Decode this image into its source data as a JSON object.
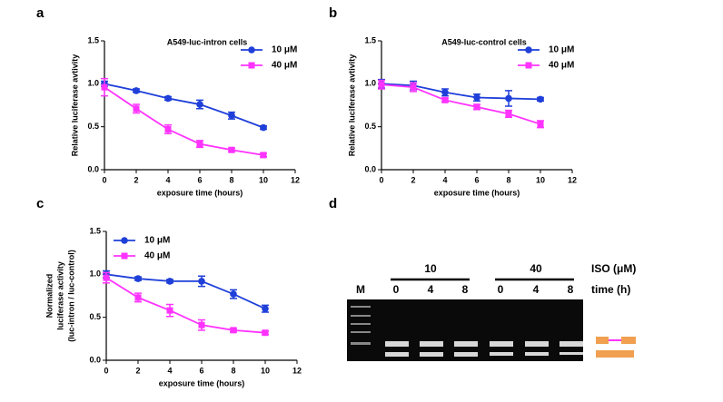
{
  "chart_data": [
    {
      "type": "line",
      "panel_label": "a",
      "title": "A549-luc-intron cells",
      "xlabel": "exposure time (hours)",
      "ylabel": "Relative luciferase avtivity",
      "x": [
        0,
        2,
        4,
        6,
        8,
        10
      ],
      "xlim": [
        0,
        12
      ],
      "xticks": [
        0,
        2,
        4,
        6,
        8,
        10,
        12
      ],
      "ylim": [
        0,
        1.5
      ],
      "yticks": [
        {
          "value": 0,
          "label": "0.0"
        },
        0.5,
        {
          "value": 1,
          "label": "1.0"
        },
        1.5
      ],
      "legend": "upper right",
      "series": [
        {
          "name": "10 μM",
          "color": "#1f3fd9",
          "marker": "circle",
          "values": [
            1.0,
            0.92,
            0.83,
            0.76,
            0.63,
            0.49
          ],
          "errors": [
            0.03,
            0.02,
            0.02,
            0.05,
            0.04,
            0.02
          ]
        },
        {
          "name": "40 μM",
          "color": "#ff33ff",
          "marker": "square",
          "values": [
            0.96,
            0.71,
            0.47,
            0.3,
            0.23,
            0.17
          ],
          "errors": [
            0.1,
            0.05,
            0.05,
            0.04,
            0.02,
            0.02
          ]
        }
      ]
    },
    {
      "type": "line",
      "panel_label": "b",
      "title": "A549-luc-control cells",
      "xlabel": "exposure time (hours)",
      "ylabel": "Relative luciferase avtivity",
      "x": [
        0,
        2,
        4,
        6,
        8,
        10
      ],
      "xlim": [
        0,
        12
      ],
      "xticks": [
        0,
        2,
        4,
        6,
        8,
        10,
        12
      ],
      "ylim": [
        0,
        1.5
      ],
      "yticks": [
        {
          "value": 0,
          "label": "0.0"
        },
        0.5,
        {
          "value": 1,
          "label": "1.0"
        },
        1.5
      ],
      "legend": "upper right",
      "series": [
        {
          "name": "10 μM",
          "color": "#1f3fd9",
          "marker": "circle",
          "values": [
            1.0,
            0.98,
            0.9,
            0.84,
            0.83,
            0.82
          ],
          "errors": [
            0.05,
            0.05,
            0.04,
            0.04,
            0.09,
            0.02
          ]
        },
        {
          "name": "40 μM",
          "color": "#ff33ff",
          "marker": "square",
          "values": [
            0.99,
            0.96,
            0.81,
            0.73,
            0.65,
            0.53
          ],
          "errors": [
            0.05,
            0.05,
            0.02,
            0.03,
            0.04,
            0.04
          ]
        }
      ]
    },
    {
      "type": "line",
      "panel_label": "c",
      "xlabel": "exposure time (hours)",
      "ylabel": [
        "Normalized",
        "luciferase activity",
        "(luc-intron / luc-control)"
      ],
      "x": [
        0,
        2,
        4,
        6,
        8,
        10
      ],
      "xlim": [
        0,
        12
      ],
      "xticks": [
        0,
        2,
        4,
        6,
        8,
        10,
        12
      ],
      "ylim": [
        0,
        1.5
      ],
      "yticks": [
        {
          "value": 0,
          "label": "0.0"
        },
        0.5,
        {
          "value": 1,
          "label": "1.0"
        },
        1.5
      ],
      "legend": "upper left",
      "series": [
        {
          "name": "10 μM",
          "color": "#1f3fd9",
          "marker": "circle",
          "values": [
            1.0,
            0.95,
            0.92,
            0.92,
            0.77,
            0.6
          ],
          "errors": [
            0.04,
            0.02,
            0.02,
            0.06,
            0.05,
            0.04
          ]
        },
        {
          "name": "40 μM",
          "color": "#ff33ff",
          "marker": "square",
          "values": [
            0.96,
            0.73,
            0.58,
            0.41,
            0.35,
            0.32
          ],
          "errors": [
            0.06,
            0.05,
            0.07,
            0.06,
            0.02,
            0.02
          ]
        }
      ]
    }
  ],
  "gel": {
    "panel_label": "d",
    "marker_lane": "M",
    "groups": [
      "10",
      "40"
    ],
    "group_caption": "ISO (μM)",
    "lanes": [
      "0",
      "4",
      "8",
      "0",
      "4",
      "8"
    ],
    "lane_caption": "time (h)"
  }
}
